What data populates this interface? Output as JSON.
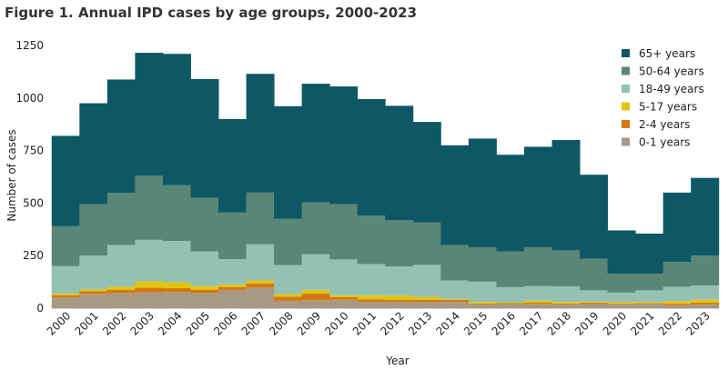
{
  "chart_data": {
    "type": "bar",
    "stacked": true,
    "title": "Figure 1. Annual IPD cases by age groups, 2000-2023",
    "xlabel": "Year",
    "ylabel": "Number of cases",
    "ylim": [
      0,
      1250
    ],
    "yticks": [
      0,
      250,
      500,
      750,
      1000,
      1250
    ],
    "grid": false,
    "legend_position": "top-right",
    "categories": [
      "2000",
      "2001",
      "2002",
      "2003",
      "2004",
      "2005",
      "2006",
      "2007",
      "2008",
      "2009",
      "2010",
      "2011",
      "2012",
      "2013",
      "2014",
      "2015",
      "2016",
      "2017",
      "2018",
      "2019",
      "2020",
      "2021",
      "2022",
      "2023"
    ],
    "series": [
      {
        "name": "0-1 years",
        "color": "#a89a82",
        "values": [
          52,
          68,
          72,
          75,
          77,
          72,
          87,
          98,
          35,
          38,
          40,
          30,
          30,
          30,
          30,
          18,
          20,
          20,
          18,
          22,
          20,
          22,
          15,
          18
        ]
      },
      {
        "name": "2-4 years",
        "color": "#d4780f",
        "values": [
          10,
          12,
          16,
          22,
          18,
          16,
          14,
          20,
          20,
          32,
          12,
          12,
          10,
          10,
          10,
          4,
          4,
          6,
          4,
          5,
          2,
          2,
          6,
          8
        ]
      },
      {
        "name": "5-17 years",
        "color": "#e3c413",
        "values": [
          8,
          10,
          14,
          31,
          28,
          17,
          12,
          14,
          12,
          17,
          10,
          20,
          20,
          14,
          4,
          8,
          4,
          10,
          8,
          5,
          8,
          6,
          13,
          14
        ]
      },
      {
        "name": "18-49 years",
        "color": "#93c2b4",
        "values": [
          130,
          160,
          198,
          197,
          197,
          165,
          120,
          172,
          138,
          170,
          170,
          148,
          138,
          152,
          88,
          96,
          72,
          69,
          74,
          53,
          44,
          55,
          68,
          68
        ]
      },
      {
        "name": "50-64 years",
        "color": "#5a8676",
        "values": [
          190,
          245,
          248,
          305,
          265,
          255,
          222,
          246,
          221,
          246,
          263,
          230,
          220,
          202,
          168,
          164,
          170,
          185,
          171,
          150,
          90,
          79,
          118,
          142
        ]
      },
      {
        "name": "65+ years",
        "color": "#0e5865",
        "values": [
          430,
          480,
          540,
          585,
          625,
          565,
          445,
          565,
          535,
          565,
          560,
          555,
          545,
          478,
          475,
          517,
          460,
          478,
          525,
          400,
          206,
          191,
          330,
          370
        ]
      }
    ]
  }
}
